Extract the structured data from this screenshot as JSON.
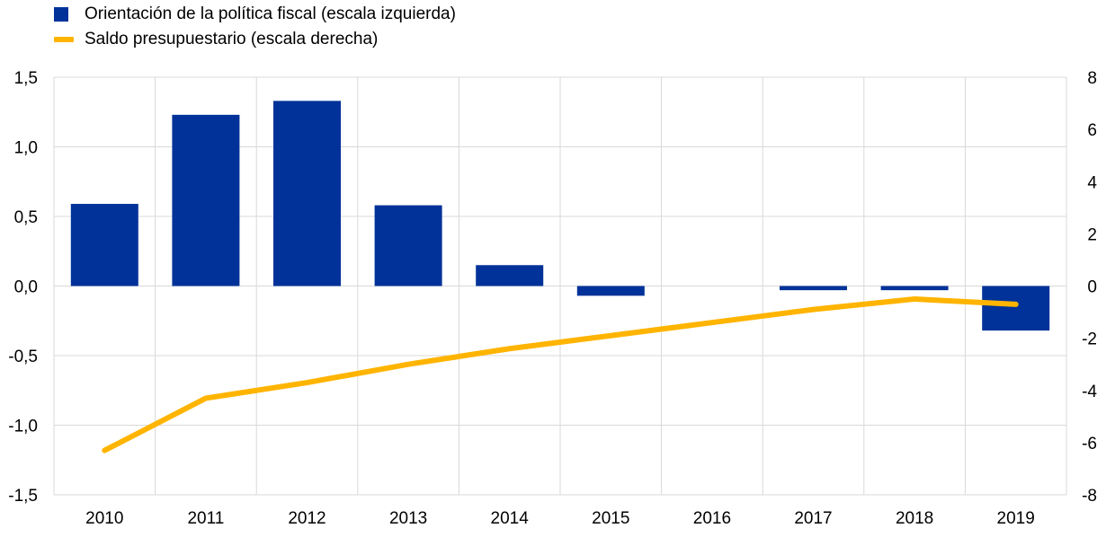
{
  "chart_data": {
    "type": "bar+line",
    "categories": [
      "2010",
      "2011",
      "2012",
      "2013",
      "2014",
      "2015",
      "2016",
      "2017",
      "2018",
      "2019"
    ],
    "series": [
      {
        "name": "Orientación de la política fiscal (escala izquierda)",
        "type": "bar",
        "axis": "left",
        "color": "#003299",
        "values": [
          0.59,
          1.23,
          1.33,
          0.58,
          0.15,
          -0.07,
          0.0,
          -0.03,
          -0.03,
          -0.32
        ]
      },
      {
        "name": "Saldo presupuestario (escala derecha)",
        "type": "line",
        "axis": "right",
        "color": "#FFB400",
        "values": [
          -6.3,
          -4.3,
          -3.7,
          -3.0,
          -2.4,
          -1.9,
          -1.4,
          -0.9,
          -0.5,
          -0.7
        ]
      }
    ],
    "left_axis": {
      "min": -1.5,
      "max": 1.5,
      "ticks": [
        1.5,
        1.0,
        0.5,
        0.0,
        -0.5,
        -1.0,
        -1.5
      ],
      "tick_labels": [
        "1,5",
        "1,0",
        "0,5",
        "0,0",
        "-0,5",
        "-1,0",
        "-1,5"
      ]
    },
    "right_axis": {
      "min": -8,
      "max": 8,
      "ticks": [
        8,
        6,
        4,
        2,
        0,
        -2,
        -4,
        -6,
        -8
      ],
      "tick_labels": [
        "8",
        "6",
        "4",
        "2",
        "0",
        "-2",
        "-4",
        "-6",
        "-8"
      ]
    },
    "grid": true,
    "legend_position": "top-left"
  }
}
